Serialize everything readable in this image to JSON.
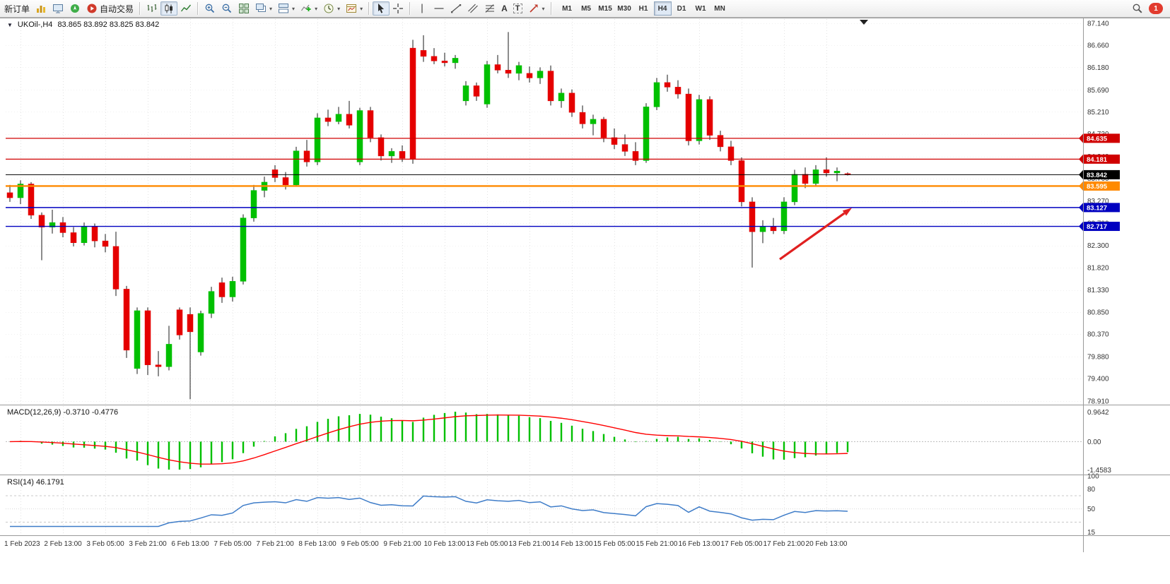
{
  "toolbar": {
    "new_order": "新订单",
    "autotrading": "自动交易",
    "text_tool": "A",
    "label_tool": "T",
    "timeframes": [
      "M1",
      "M5",
      "M15",
      "M30",
      "H1",
      "H4",
      "D1",
      "W1",
      "MN"
    ],
    "active_timeframe": "H4",
    "notification_count": "1"
  },
  "chart": {
    "symbol_title": "UKOil-,H4",
    "ohlc": "83.865 83.892 83.825 83.842",
    "price_labels": [
      "87.140",
      "86.660",
      "86.180",
      "85.690",
      "85.210",
      "84.730",
      "84.240",
      "83.760",
      "83.270",
      "82.790",
      "82.300",
      "81.820",
      "81.330",
      "80.850",
      "80.370",
      "79.880",
      "79.400",
      "78.910"
    ],
    "time_labels": [
      "1 Feb 2023",
      "2 Feb 13:00",
      "3 Feb 05:00",
      "3 Feb 21:00",
      "6 Feb 13:00",
      "7 Feb 05:00",
      "7 Feb 21:00",
      "8 Feb 13:00",
      "9 Feb 05:00",
      "9 Feb 21:00",
      "10 Feb 13:00",
      "13 Feb 05:00",
      "13 Feb 21:00",
      "14 Feb 13:00",
      "15 Feb 05:00",
      "15 Feb 21:00",
      "16 Feb 13:00",
      "17 Feb 05:00",
      "17 Feb 21:00",
      "20 Feb 13:00"
    ],
    "levels": [
      {
        "label": "84.635",
        "price": 84.635,
        "color": "#D00000",
        "width": 1.2
      },
      {
        "label": "84.181",
        "price": 84.181,
        "color": "#D00000",
        "width": 1.2
      },
      {
        "label": "83.842",
        "price": 83.842,
        "color": "#000000",
        "width": 1
      },
      {
        "label": "83.595",
        "price": 83.595,
        "color": "#FF8A00",
        "width": 2.4
      },
      {
        "label": "83.127",
        "price": 83.127,
        "color": "#0000C0",
        "width": 1.4
      },
      {
        "label": "82.717",
        "price": 82.717,
        "color": "#0000C0",
        "width": 1.4
      }
    ],
    "arrow": {
      "from_bar": 72.6,
      "from_price": 82.0,
      "to_bar": 79.4,
      "to_price": 83.12,
      "color": "#E02020"
    }
  },
  "macd": {
    "caption": "MACD(12,26,9) -0.3710 -0.4776",
    "axis_max": "0.9642",
    "axis_zero": "0.00",
    "axis_min": "-1.4583"
  },
  "rsi": {
    "caption": "RSI(14) 46.1791",
    "axis_labels": [
      "100",
      "80",
      "50",
      "15"
    ],
    "axis_values": [
      100,
      80,
      50,
      15
    ]
  },
  "colors": {
    "up": "#00C000",
    "down": "#E50000",
    "wick": "#1a1a1a",
    "macd_hist": "#00C000",
    "macd_signal": "#FF0000",
    "rsi_line": "#3E7CC8",
    "grid": "#E2E2E2",
    "axis_text": "#333333"
  },
  "chart_data": {
    "type": "candlestick",
    "symbol": "UKOil-",
    "timeframe": "H4",
    "indicators": {
      "macd": {
        "params": "12,26,9",
        "main": -0.371,
        "signal": -0.4776
      },
      "rsi": {
        "params": "14",
        "value": 46.1791
      }
    },
    "candles": [
      [
        83.45,
        83.62,
        83.25,
        83.34
      ],
      [
        83.34,
        83.72,
        83.2,
        83.64
      ],
      [
        83.64,
        83.68,
        82.88,
        82.96
      ],
      [
        82.96,
        83.02,
        81.98,
        82.7
      ],
      [
        82.7,
        83.08,
        82.56,
        82.8
      ],
      [
        82.8,
        82.92,
        82.48,
        82.58
      ],
      [
        82.58,
        82.7,
        82.28,
        82.36
      ],
      [
        82.36,
        82.8,
        82.3,
        82.72
      ],
      [
        82.72,
        82.78,
        82.26,
        82.4
      ],
      [
        82.4,
        82.55,
        82.15,
        82.28
      ],
      [
        82.28,
        82.6,
        81.2,
        81.35
      ],
      [
        81.35,
        81.42,
        79.85,
        80.02
      ],
      [
        79.62,
        80.95,
        79.5,
        80.88
      ],
      [
        80.88,
        80.95,
        79.48,
        79.7
      ],
      [
        79.7,
        80.0,
        79.45,
        79.66
      ],
      [
        79.66,
        80.55,
        79.58,
        80.15
      ],
      [
        80.9,
        80.95,
        80.25,
        80.35
      ],
      [
        80.8,
        80.95,
        78.95,
        80.42
      ],
      [
        79.98,
        80.88,
        79.9,
        80.82
      ],
      [
        80.82,
        81.4,
        80.72,
        81.3
      ],
      [
        81.49,
        81.6,
        81.05,
        81.18
      ],
      [
        81.18,
        81.62,
        81.08,
        81.52
      ],
      [
        81.52,
        82.98,
        81.45,
        82.9
      ],
      [
        82.9,
        83.62,
        82.82,
        83.5
      ],
      [
        83.5,
        83.8,
        83.35,
        83.68
      ],
      [
        83.95,
        84.05,
        83.68,
        83.78
      ],
      [
        83.78,
        83.9,
        83.52,
        83.62
      ],
      [
        83.62,
        84.45,
        83.58,
        84.36
      ],
      [
        84.36,
        84.6,
        84.02,
        84.12
      ],
      [
        84.12,
        85.18,
        84.05,
        85.08
      ],
      [
        85.08,
        85.26,
        84.9,
        85.0
      ],
      [
        85.0,
        85.32,
        84.94,
        85.16
      ],
      [
        85.16,
        85.45,
        84.85,
        84.92
      ],
      [
        84.12,
        85.3,
        84.05,
        85.24
      ],
      [
        85.24,
        85.32,
        84.55,
        84.65
      ],
      [
        84.65,
        84.72,
        84.15,
        84.25
      ],
      [
        84.25,
        84.42,
        84.1,
        84.35
      ],
      [
        84.35,
        84.48,
        84.12,
        84.2
      ],
      [
        86.6,
        86.78,
        84.08,
        84.18
      ],
      [
        86.55,
        86.88,
        86.3,
        86.42
      ],
      [
        86.42,
        86.6,
        86.25,
        86.32
      ],
      [
        86.32,
        86.5,
        86.2,
        86.28
      ],
      [
        86.28,
        86.45,
        86.15,
        86.38
      ],
      [
        85.45,
        85.88,
        85.35,
        85.78
      ],
      [
        85.78,
        85.85,
        85.45,
        85.55
      ],
      [
        85.38,
        86.32,
        85.3,
        86.24
      ],
      [
        86.24,
        86.45,
        86.05,
        86.12
      ],
      [
        86.12,
        86.95,
        85.95,
        86.05
      ],
      [
        86.05,
        86.3,
        85.9,
        86.22
      ],
      [
        86.05,
        86.2,
        85.85,
        85.95
      ],
      [
        85.95,
        86.18,
        85.82,
        86.1
      ],
      [
        86.1,
        86.22,
        85.35,
        85.45
      ],
      [
        85.45,
        85.72,
        85.3,
        85.62
      ],
      [
        85.62,
        85.7,
        85.1,
        85.2
      ],
      [
        85.2,
        85.35,
        84.85,
        84.95
      ],
      [
        84.95,
        85.15,
        84.7,
        85.05
      ],
      [
        85.05,
        85.1,
        84.55,
        84.65
      ],
      [
        84.65,
        84.85,
        84.4,
        84.5
      ],
      [
        84.5,
        84.72,
        84.25,
        84.35
      ],
      [
        84.35,
        84.55,
        84.05,
        84.15
      ],
      [
        84.15,
        85.4,
        84.1,
        85.32
      ],
      [
        85.32,
        85.95,
        85.25,
        85.85
      ],
      [
        85.85,
        86.02,
        85.65,
        85.75
      ],
      [
        85.75,
        85.9,
        85.5,
        85.6
      ],
      [
        85.6,
        85.72,
        84.48,
        84.58
      ],
      [
        84.58,
        85.58,
        84.5,
        85.48
      ],
      [
        85.48,
        85.55,
        84.6,
        84.7
      ],
      [
        84.7,
        84.8,
        84.35,
        84.45
      ],
      [
        84.45,
        84.58,
        84.05,
        84.15
      ],
      [
        84.15,
        84.22,
        83.15,
        83.25
      ],
      [
        83.25,
        83.35,
        81.82,
        82.6
      ],
      [
        82.6,
        82.85,
        82.35,
        82.72
      ],
      [
        82.72,
        82.9,
        82.55,
        82.62
      ],
      [
        82.62,
        83.35,
        82.55,
        83.25
      ],
      [
        83.25,
        83.95,
        83.18,
        83.85
      ],
      [
        83.85,
        84.0,
        83.55,
        83.65
      ],
      [
        83.65,
        84.05,
        83.58,
        83.95
      ],
      [
        83.95,
        84.22,
        83.8,
        83.88
      ],
      [
        83.88,
        84.0,
        83.7,
        83.92
      ],
      [
        83.865,
        83.892,
        83.825,
        83.842
      ]
    ]
  }
}
